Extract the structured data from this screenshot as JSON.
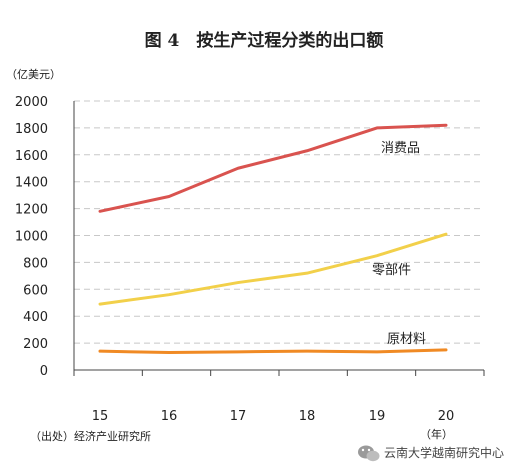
{
  "chart_data": {
    "type": "line",
    "title": "图 4　按生产过程分类的出口额",
    "ylabel": "（亿美元）",
    "xlabel": "（年）",
    "categories": [
      "15",
      "16",
      "17",
      "18",
      "19",
      "20"
    ],
    "ylim": [
      0,
      2000
    ],
    "yticks": [
      0,
      200,
      400,
      600,
      800,
      1000,
      1200,
      1400,
      1600,
      1800,
      2000
    ],
    "grid": true,
    "legend": "inline labels",
    "series": [
      {
        "name": "消费品",
        "color": "#d9534f",
        "values": [
          1180,
          1290,
          1500,
          1630,
          1800,
          1820
        ]
      },
      {
        "name": "零部件",
        "color": "#f2d04a",
        "values": [
          490,
          560,
          650,
          720,
          850,
          1010
        ]
      },
      {
        "name": "原材料",
        "color": "#f08a24",
        "values": [
          140,
          130,
          135,
          140,
          135,
          150
        ]
      }
    ]
  },
  "source": "（出处）经济产业研究所",
  "watermark": "云南大学越南研究中心"
}
